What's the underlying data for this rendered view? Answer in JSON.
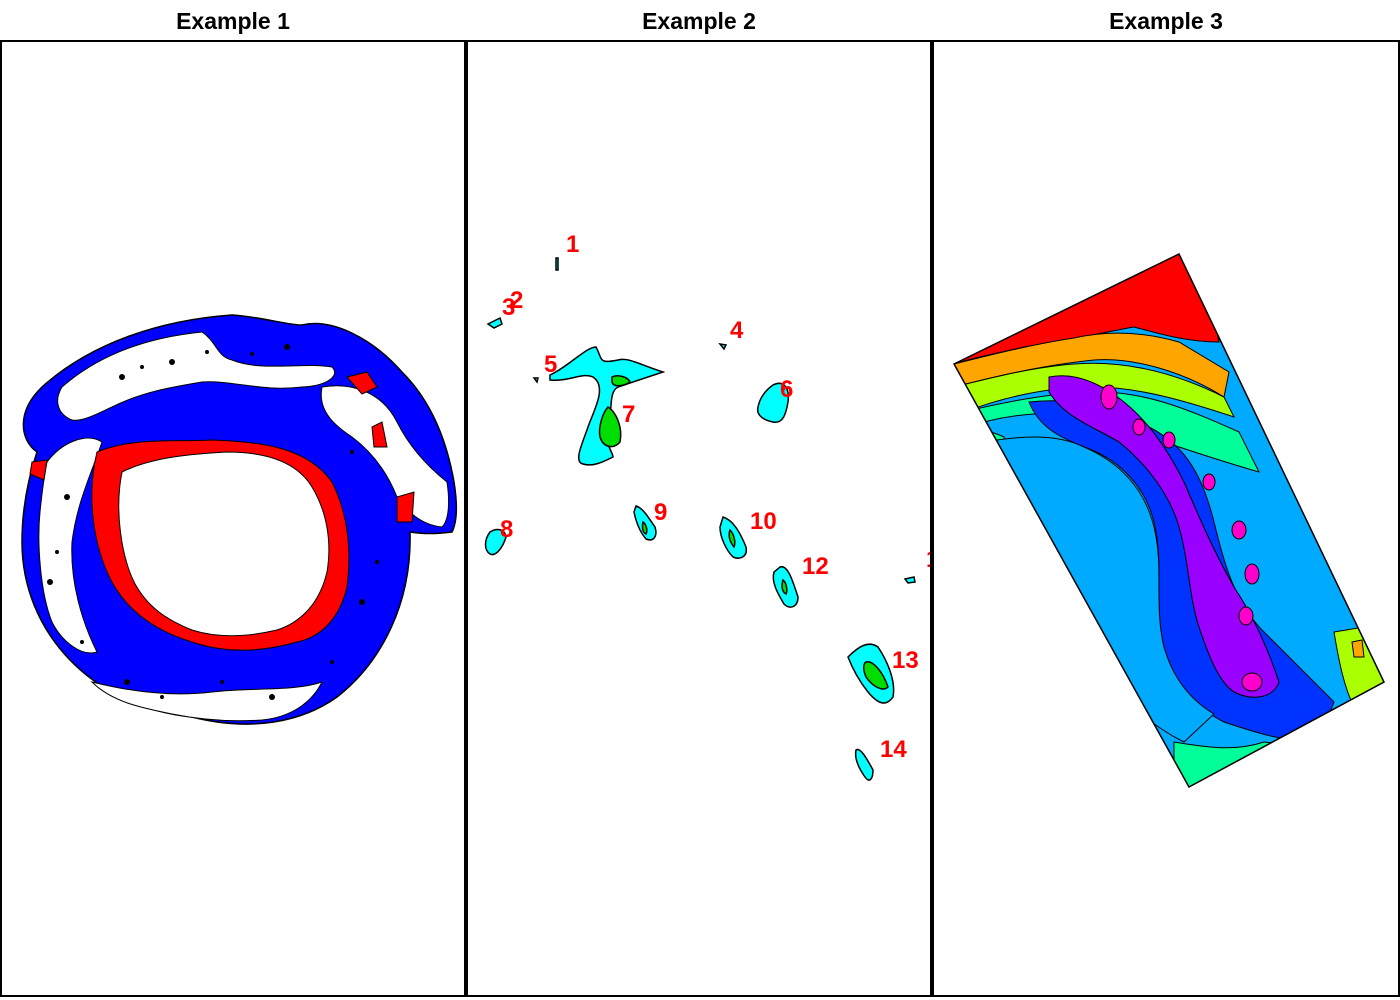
{
  "panels": [
    {
      "title": "Example 1"
    },
    {
      "title": "Example 2"
    },
    {
      "title": "Example 3"
    }
  ],
  "example2": {
    "label_color": "#ff0000",
    "labels": [
      "1",
      "2",
      "3",
      "4",
      "5",
      "6",
      "7",
      "8",
      "9",
      "10",
      "12",
      "13",
      "14",
      "1"
    ]
  },
  "colors": {
    "ocean_shelf": "#0000ff",
    "ice_edge": "#ff0000",
    "contour_low": "#00ffff",
    "contour_high": "#00dd00",
    "outline": "#000000"
  },
  "palette_example3": [
    "#ff0000",
    "#ffa500",
    "#aaff00",
    "#00ff99",
    "#00c8ff",
    "#0033ff",
    "#9900ff",
    "#ff00cc"
  ]
}
